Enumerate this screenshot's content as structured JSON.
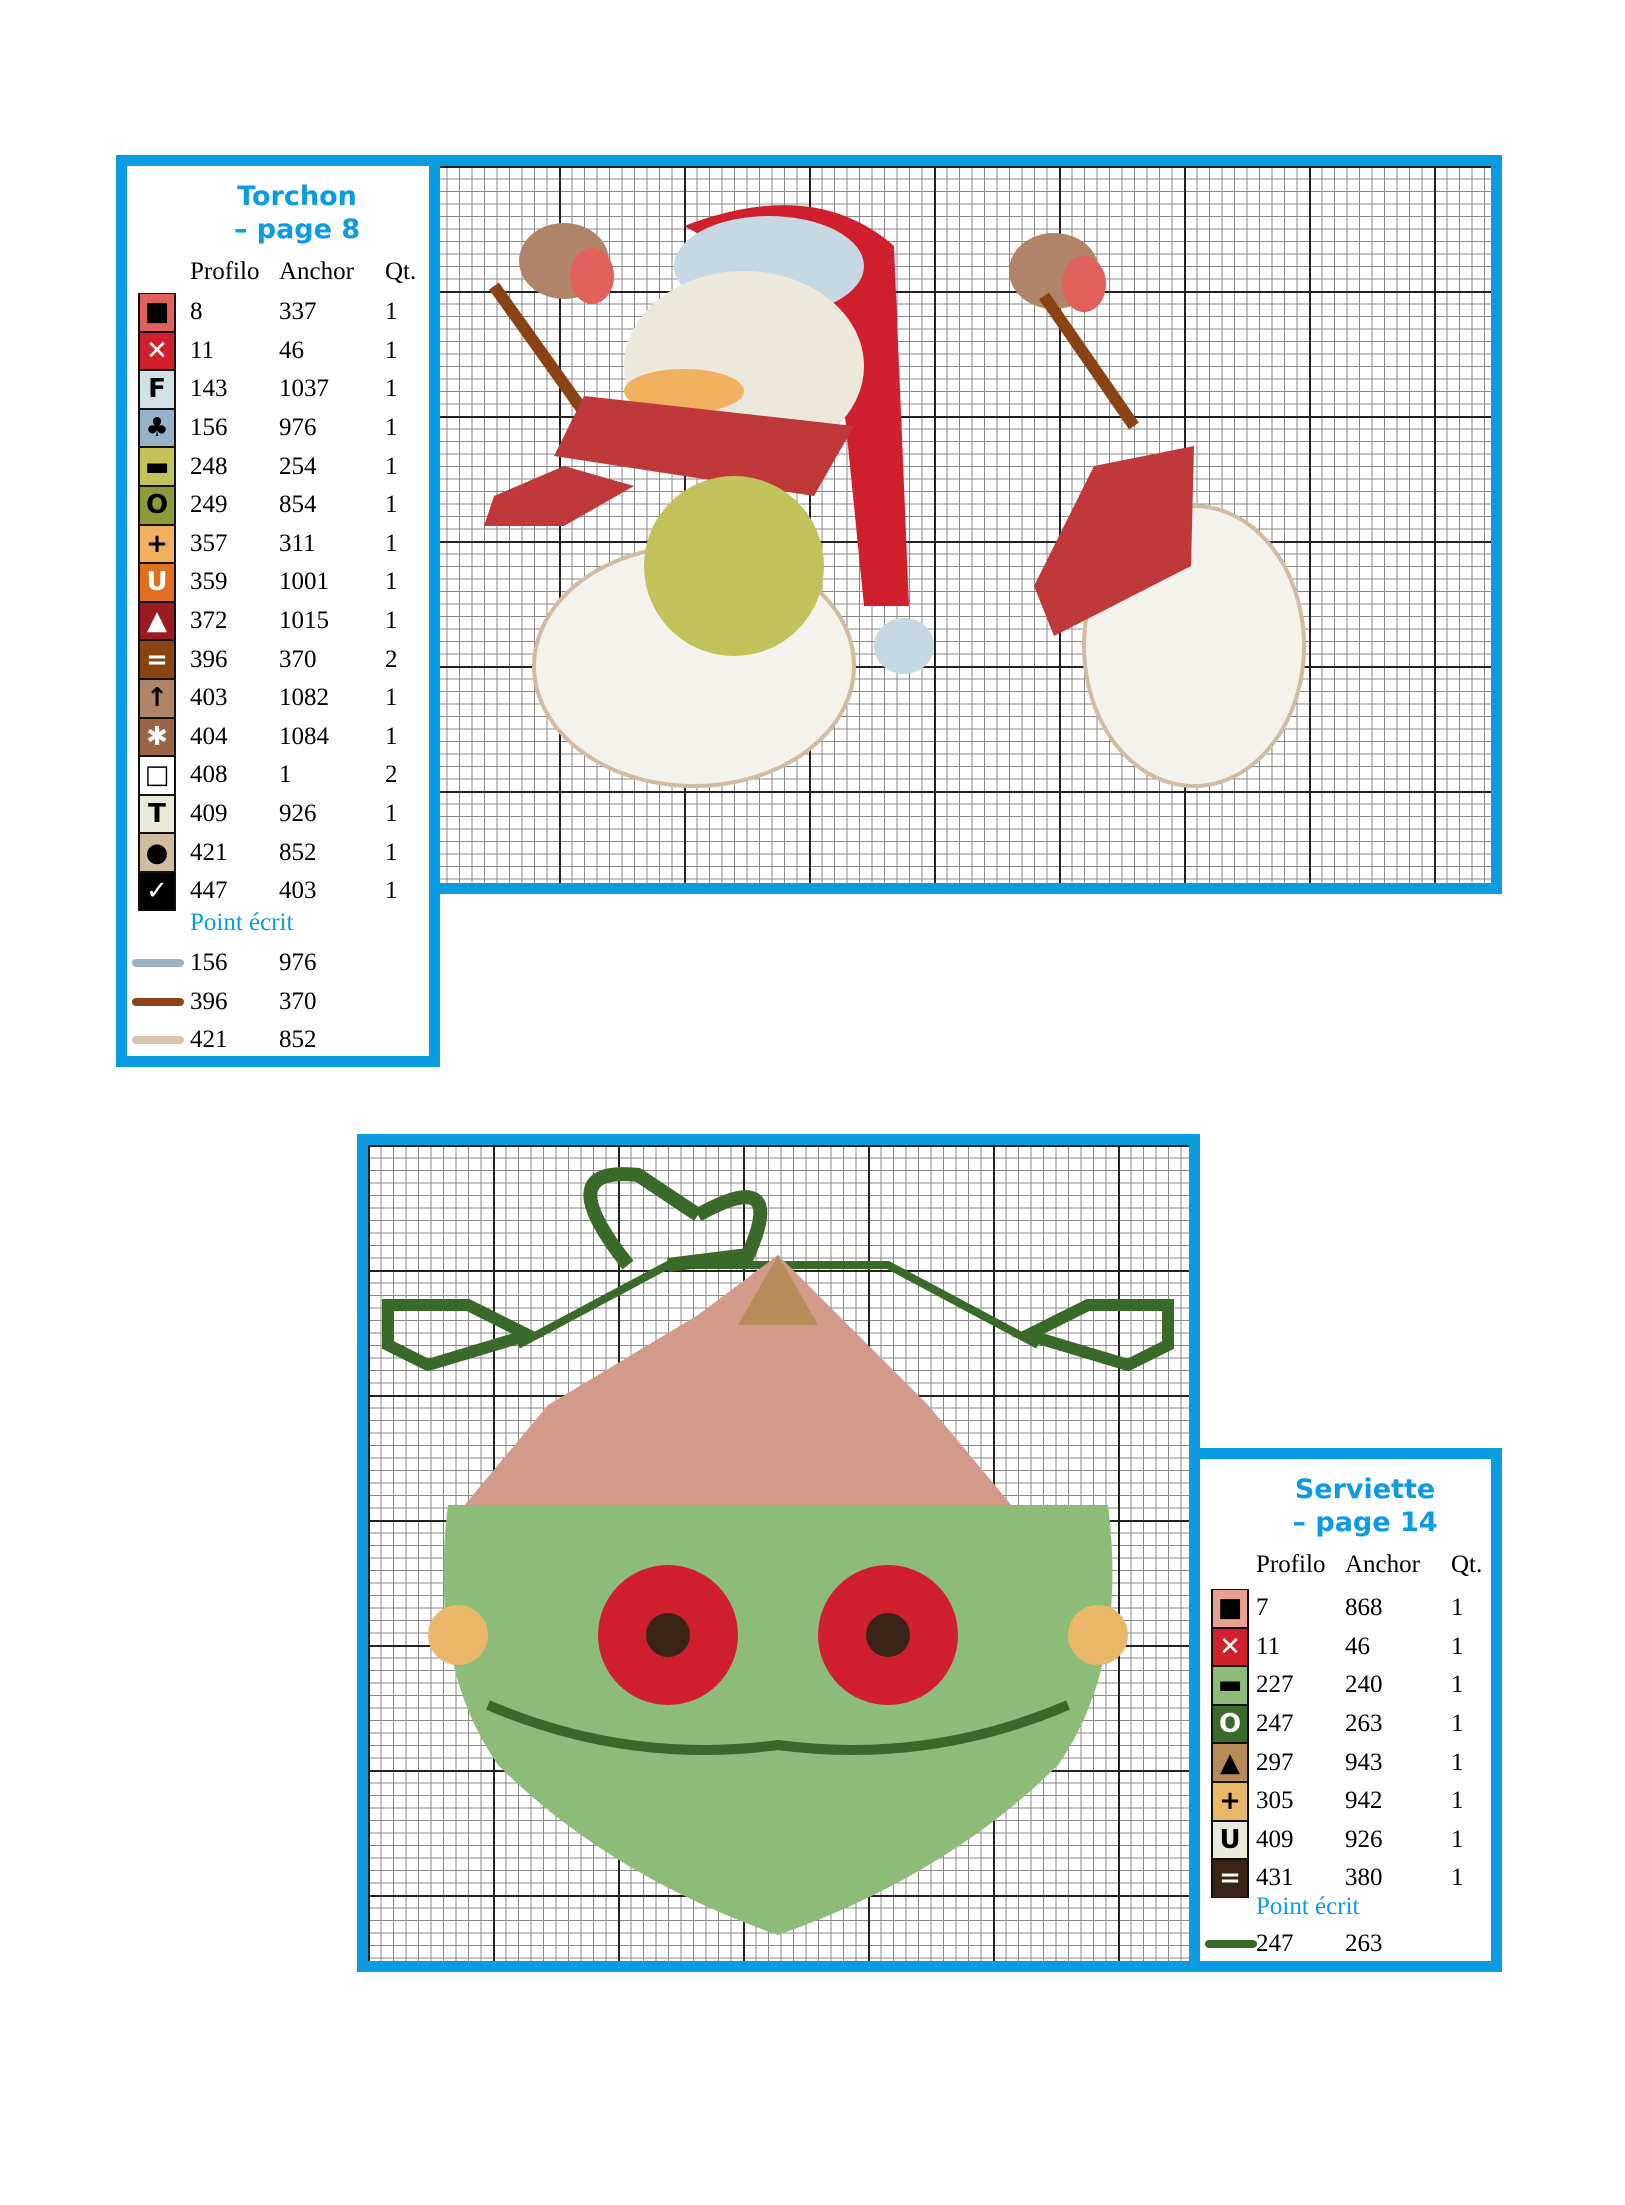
{
  "torchon": {
    "title_line1": "Torchon",
    "title_line2": "– page 8",
    "headers": {
      "profilo": "Profilo",
      "anchor": "Anchor",
      "qt": "Qt."
    },
    "rows": [
      {
        "symbol": "■",
        "bg": "#e0605a",
        "fg": "#000",
        "profilo": "8",
        "anchor": "337",
        "qt": "1"
      },
      {
        "symbol": "✕",
        "bg": "#d0202e",
        "fg": "#fff",
        "profilo": "11",
        "anchor": "46",
        "qt": "1"
      },
      {
        "symbol": "F",
        "bg": "#d3e0e6",
        "fg": "#000",
        "profilo": "143",
        "anchor": "1037",
        "qt": "1"
      },
      {
        "symbol": "♣",
        "bg": "#94b2c8",
        "fg": "#000",
        "profilo": "156",
        "anchor": "976",
        "qt": "1"
      },
      {
        "symbol": "▬",
        "bg": "#c2c25a",
        "fg": "#000",
        "profilo": "248",
        "anchor": "254",
        "qt": "1"
      },
      {
        "symbol": "O",
        "bg": "#8c9a3c",
        "fg": "#000",
        "profilo": "249",
        "anchor": "854",
        "qt": "1"
      },
      {
        "symbol": "+",
        "bg": "#f0b060",
        "fg": "#000",
        "profilo": "357",
        "anchor": "311",
        "qt": "1"
      },
      {
        "symbol": "U",
        "bg": "#e0701e",
        "fg": "#fff",
        "profilo": "359",
        "anchor": "1001",
        "qt": "1"
      },
      {
        "symbol": "▲",
        "bg": "#9a1c22",
        "fg": "#fff",
        "profilo": "372",
        "anchor": "1015",
        "qt": "1"
      },
      {
        "symbol": "=",
        "bg": "#8a4414",
        "fg": "#fff",
        "profilo": "396",
        "anchor": "370",
        "qt": "2"
      },
      {
        "symbol": "↑",
        "bg": "#b08468",
        "fg": "#000",
        "profilo": "403",
        "anchor": "1082",
        "qt": "1"
      },
      {
        "symbol": "✱",
        "bg": "#9a6446",
        "fg": "#fff",
        "profilo": "404",
        "anchor": "1084",
        "qt": "1"
      },
      {
        "symbol": "□",
        "bg": "#ffffff",
        "fg": "#000",
        "profilo": "408",
        "anchor": "1",
        "qt": "2"
      },
      {
        "symbol": "T",
        "bg": "#ece8dc",
        "fg": "#000",
        "profilo": "409",
        "anchor": "926",
        "qt": "1"
      },
      {
        "symbol": "●",
        "bg": "#d2bca0",
        "fg": "#000",
        "profilo": "421",
        "anchor": "852",
        "qt": "1"
      },
      {
        "symbol": "✓",
        "bg": "#000000",
        "fg": "#fff",
        "profilo": "447",
        "anchor": "403",
        "qt": "1"
      }
    ],
    "point_ecrit_label": "Point écrit",
    "point_ecrit": [
      {
        "color": "#9cb2c4",
        "profilo": "156",
        "anchor": "976"
      },
      {
        "color": "#8a4414",
        "profilo": "396",
        "anchor": "370"
      },
      {
        "color": "#d6c6b0",
        "profilo": "421",
        "anchor": "852"
      }
    ]
  },
  "serviette": {
    "title_line1": "Serviette",
    "title_line2": "– page 14",
    "headers": {
      "profilo": "Profilo",
      "anchor": "Anchor",
      "qt": "Qt."
    },
    "rows": [
      {
        "symbol": "■",
        "bg": "#e8a090",
        "fg": "#000",
        "profilo": "7",
        "anchor": "868",
        "qt": "1"
      },
      {
        "symbol": "✕",
        "bg": "#d0202e",
        "fg": "#fff",
        "profilo": "11",
        "anchor": "46",
        "qt": "1"
      },
      {
        "symbol": "▬",
        "bg": "#8cbc78",
        "fg": "#000",
        "profilo": "227",
        "anchor": "240",
        "qt": "1"
      },
      {
        "symbol": "O",
        "bg": "#3a6a2a",
        "fg": "#fff",
        "profilo": "247",
        "anchor": "263",
        "qt": "1"
      },
      {
        "symbol": "▲",
        "bg": "#b88c5a",
        "fg": "#000",
        "profilo": "297",
        "anchor": "943",
        "qt": "1"
      },
      {
        "symbol": "+",
        "bg": "#e8b868",
        "fg": "#000",
        "profilo": "305",
        "anchor": "942",
        "qt": "1"
      },
      {
        "symbol": "U",
        "bg": "#ece8dc",
        "fg": "#000",
        "profilo": "409",
        "anchor": "926",
        "qt": "1"
      },
      {
        "symbol": "=",
        "bg": "#3a2418",
        "fg": "#fff",
        "profilo": "431",
        "anchor": "380",
        "qt": "1"
      }
    ],
    "point_ecrit_label": "Point écrit",
    "point_ecrit": [
      {
        "color": "#3a6a2a",
        "profilo": "247",
        "anchor": "263"
      }
    ]
  },
  "accent_color": "#0a9be0"
}
